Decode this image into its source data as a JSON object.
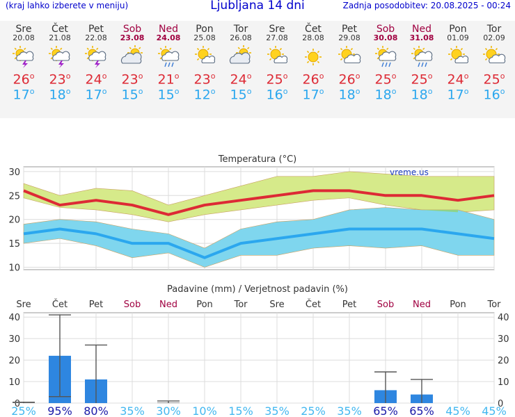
{
  "header": {
    "left": "(kraj lahko izberete v meniju)",
    "title": "Ljubljana 14 dni",
    "right": "Zadnja posodobitev: 20.08.2025 - 00:24"
  },
  "days": [
    {
      "name": "Sre",
      "date": "20.08",
      "weekend": false,
      "icon": "sun-cloud-thunder-icon",
      "tmax": "26",
      "tmin": "17"
    },
    {
      "name": "Čet",
      "date": "21.08",
      "weekend": false,
      "icon": "sun-cloud-thunder-icon",
      "tmax": "23",
      "tmin": "18"
    },
    {
      "name": "Pet",
      "date": "22.08",
      "weekend": false,
      "icon": "sun-cloud-thunder-icon",
      "tmax": "24",
      "tmin": "17"
    },
    {
      "name": "Sob",
      "date": "23.08",
      "weekend": true,
      "icon": "cloud-sun-icon",
      "tmax": "23",
      "tmin": "15"
    },
    {
      "name": "Ned",
      "date": "24.08",
      "weekend": true,
      "icon": "sun-cloud-rain-icon",
      "tmax": "21",
      "tmin": "15"
    },
    {
      "name": "Pon",
      "date": "25.08",
      "weekend": false,
      "icon": "sun-small-cloud-icon",
      "tmax": "23",
      "tmin": "12"
    },
    {
      "name": "Tor",
      "date": "26.08",
      "weekend": false,
      "icon": "cloud-sun-icon",
      "tmax": "24",
      "tmin": "15"
    },
    {
      "name": "Sre",
      "date": "27.08",
      "weekend": false,
      "icon": "sun-small-cloud-icon",
      "tmax": "25",
      "tmin": "16"
    },
    {
      "name": "Čet",
      "date": "28.08",
      "weekend": false,
      "icon": "sun-icon",
      "tmax": "26",
      "tmin": "17"
    },
    {
      "name": "Pet",
      "date": "29.08",
      "weekend": false,
      "icon": "sun-cloud-icon",
      "tmax": "26",
      "tmin": "18"
    },
    {
      "name": "Sob",
      "date": "30.08",
      "weekend": true,
      "icon": "sun-cloud-rain-icon",
      "tmax": "25",
      "tmin": "18"
    },
    {
      "name": "Ned",
      "date": "31.08",
      "weekend": true,
      "icon": "sun-cloud-rain-icon",
      "tmax": "25",
      "tmin": "18"
    },
    {
      "name": "Pon",
      "date": "01.09",
      "weekend": false,
      "icon": "sun-small-cloud-icon",
      "tmax": "24",
      "tmin": "17"
    },
    {
      "name": "Tor",
      "date": "02.09",
      "weekend": false,
      "icon": "sun-cloud-icon",
      "tmax": "25",
      "tmin": "16"
    }
  ],
  "colors": {
    "max": "#dd2a35",
    "min": "#2ba7ee",
    "max_band": "#d6ea8a",
    "min_band": "#7fd6ee",
    "overlap": "#8fd37a",
    "bar": "#2e86e0",
    "weekend": "#a00040"
  },
  "chart_data": [
    {
      "type": "line",
      "title": "Temperatura (°C)",
      "watermark": "vreme.us",
      "ylim": [
        9.5,
        31
      ],
      "yticks": [
        10,
        15,
        20,
        25,
        30
      ],
      "grid": true,
      "series": [
        {
          "values": [
            26,
            23,
            24,
            23,
            21,
            23,
            24,
            25,
            26,
            26,
            25,
            25,
            24,
            25
          ],
          "color": "#dd2a35"
        },
        {
          "values": [
            17,
            18,
            17,
            15,
            15,
            12,
            15,
            16,
            17,
            18,
            18,
            18,
            17,
            16
          ],
          "color": "#2ba7ee"
        }
      ],
      "max_band_upper": [
        27.5,
        25,
        26.5,
        26,
        23,
        25,
        27,
        29,
        29,
        30,
        29.5,
        29,
        29,
        29
      ],
      "max_band_lower": [
        24.5,
        22.5,
        22,
        21,
        19.5,
        21,
        22,
        23,
        24,
        24.5,
        23,
        22,
        21.5,
        22
      ],
      "min_band_upper": [
        19,
        20,
        19.5,
        18,
        17,
        14,
        18,
        19.5,
        20,
        22,
        22.5,
        22,
        22,
        20
      ],
      "min_band_lower": [
        15,
        16,
        14.5,
        12,
        13,
        10,
        12.5,
        12.5,
        14,
        14.5,
        14,
        14.5,
        12.5,
        12.5
      ]
    },
    {
      "type": "bar",
      "title": "Padavine (mm) / Verjetnost padavin (%)",
      "categories": [
        "Sre",
        "Čet",
        "Pet",
        "Sob",
        "Ned",
        "Pon",
        "Tor",
        "Sre",
        "Čet",
        "Pet",
        "Sob",
        "Ned",
        "Pon",
        "Tor"
      ],
      "weekend": [
        false,
        false,
        false,
        true,
        true,
        false,
        false,
        false,
        false,
        false,
        true,
        true,
        false,
        false
      ],
      "ylim": [
        0,
        42
      ],
      "yticks": [
        0,
        10,
        20,
        30,
        40
      ],
      "grid": true,
      "values": [
        0.2,
        22,
        11,
        0,
        0.3,
        0,
        0,
        0,
        0,
        0,
        6,
        4,
        0,
        0
      ],
      "err_high": [
        0.4,
        41,
        27,
        0,
        1,
        0,
        0,
        0,
        0,
        0,
        14.5,
        11,
        0,
        0
      ],
      "err_low": [
        0,
        3,
        0,
        0,
        0,
        0,
        0,
        0,
        0,
        0,
        0,
        0,
        0,
        0
      ],
      "probability": [
        "25%",
        "95%",
        "80%",
        "35%",
        "30%",
        "10%",
        "15%",
        "35%",
        "25%",
        "35%",
        "65%",
        "65%",
        "45%",
        "45%"
      ],
      "prob_strong": [
        false,
        true,
        true,
        false,
        false,
        false,
        false,
        false,
        false,
        false,
        true,
        true,
        false,
        false
      ]
    }
  ]
}
